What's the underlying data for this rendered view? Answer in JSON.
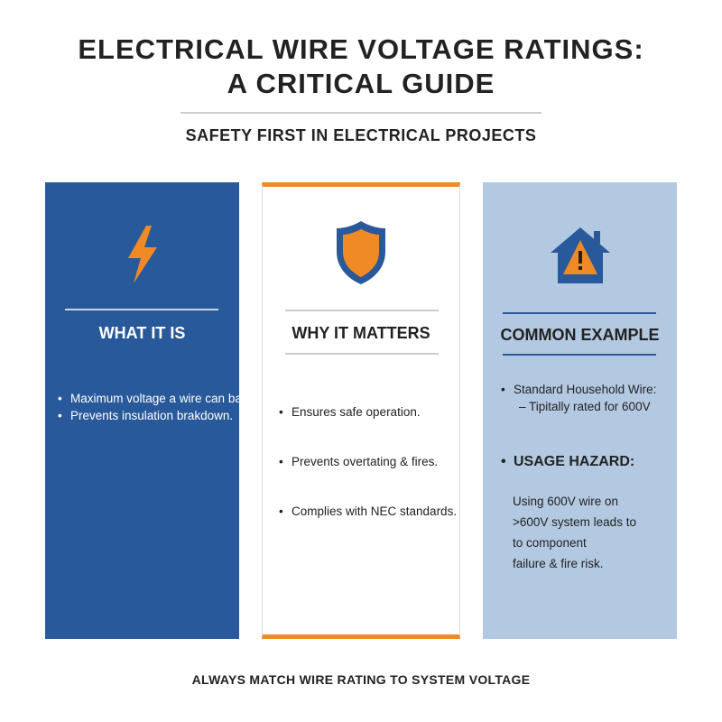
{
  "header": {
    "title_line1": "ELECTRICAL WIRE VOLTAGE RATINGS:",
    "title_line2": "A CRITICAL GUIDE",
    "subtitle": "SAFETY FIRST IN ELECTRICAL PROJECTS"
  },
  "panels": [
    {
      "heading": "WHAT IT IS",
      "icon": "lightning-bolt-icon",
      "bullets": [
        "Maximum voltage a wire can bafle.",
        "Prevents insulation brakdown."
      ]
    },
    {
      "heading": "WHY IT MATTERS",
      "icon": "shield-icon",
      "bullets": [
        "Ensures safe operation.",
        "Prevents overtating & fires.",
        "Complies with NEC standards."
      ]
    },
    {
      "heading": "COMMON EXAMPLE",
      "icon": "house-warning-icon",
      "item1": "Standard Household Wire:",
      "item1_sub": "– Tipitally rated for 600V",
      "hazard_label": "USAGE HAZARD:",
      "hazard_lines": [
        "Using 600V wire on",
        ">600V system leads to",
        "to component",
        "failure & fire risk."
      ]
    }
  ],
  "footer": "ALWAYS MATCH WIRE RATING TO SYSTEM VOLTAGE",
  "colors": {
    "blue": "#28599a",
    "orange": "#f08a24",
    "light_blue": "#b3c9e1"
  }
}
